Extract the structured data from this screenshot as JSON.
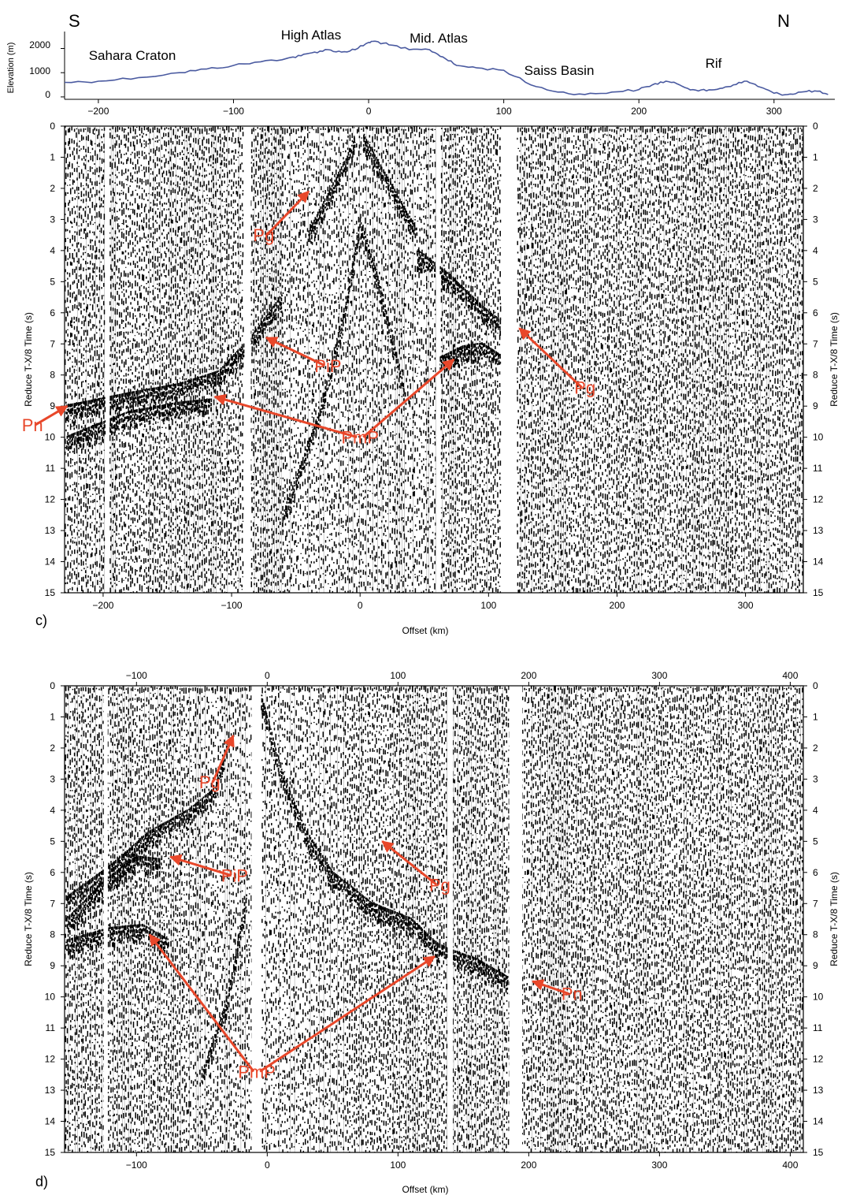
{
  "colors": {
    "elevation_line": "#4a5aa0",
    "annotation": "#e8472a",
    "trace": "#000000",
    "frame": "#000000"
  },
  "profile": {
    "end_left": "S",
    "end_right": "N",
    "ylabel": "Elevation (m)",
    "y_ticks": [
      "0",
      "1000",
      "2000"
    ],
    "regions": [
      {
        "label": "Sahara Craton",
        "x": -170
      },
      {
        "label": "High Atlas",
        "x": -33
      },
      {
        "label": "Mid. Atlas",
        "x": 65
      },
      {
        "label": "Saiss Basin",
        "x": 160
      },
      {
        "label": "Rif",
        "x": 280
      }
    ]
  },
  "chart_data": [
    {
      "type": "line",
      "panel_label": "",
      "xlabel": "",
      "ylabel": "Elevation (m)",
      "xlim": [
        -225,
        345
      ],
      "ylim": [
        -100,
        2700
      ],
      "x_ticks": [
        -200,
        -100,
        0,
        100,
        200,
        300
      ],
      "y_ticks": [
        0,
        1000,
        2000
      ],
      "series": [
        {
          "x": [
            -225,
            -200,
            -170,
            -140,
            -120,
            -100,
            -80,
            -60,
            -50,
            -40,
            -30,
            -20,
            -10,
            0,
            5,
            15,
            30,
            45,
            55,
            65,
            80,
            100,
            120,
            140,
            160,
            180,
            200,
            210,
            220,
            230,
            240,
            250,
            260,
            270,
            280,
            290,
            300,
            310,
            320,
            330,
            340
          ],
          "y": [
            600,
            650,
            800,
            1000,
            1150,
            1300,
            1450,
            1600,
            1700,
            1850,
            1950,
            1850,
            1950,
            2250,
            2300,
            2150,
            1950,
            1950,
            1650,
            1300,
            1200,
            1100,
            500,
            200,
            100,
            200,
            300,
            500,
            650,
            500,
            300,
            250,
            350,
            500,
            650,
            400,
            150,
            100,
            200,
            250,
            100
          ]
        }
      ]
    },
    {
      "type": "heatmap",
      "panel_label": "c)",
      "xlabel": "Offset (km)",
      "ylabel": "Reduce T-X/8 Time (s)",
      "xlim": [
        -230,
        345
      ],
      "ylim": [
        15,
        0
      ],
      "x_ticks": [
        -200,
        -100,
        0,
        100,
        200,
        300
      ],
      "y_ticks": [
        0,
        1,
        2,
        3,
        4,
        5,
        6,
        7,
        8,
        9,
        10,
        11,
        12,
        13,
        14,
        15
      ],
      "gaps": [
        [
          -198,
          -195
        ],
        [
          -90,
          -85
        ],
        [
          59,
          62
        ],
        [
          110,
          122
        ]
      ],
      "phase_curves": [
        {
          "x": [
            -40,
            -25,
            -10,
            -3
          ],
          "y": [
            3.4,
            2.2,
            1.0,
            0.3
          ]
        },
        {
          "x": [
            3,
            15,
            30,
            45
          ],
          "y": [
            0.3,
            1.2,
            2.3,
            3.4
          ]
        },
        {
          "x": [
            -228,
            -180,
            -140,
            -110,
            -85,
            -60
          ],
          "y": [
            9.0,
            8.6,
            8.3,
            7.9,
            6.8,
            5.4
          ]
        },
        {
          "x": [
            -228,
            -180,
            -140,
            -115
          ],
          "y": [
            10.0,
            9.2,
            8.9,
            8.8
          ]
        },
        {
          "x": [
            45,
            70,
            95,
            110
          ],
          "y": [
            4.0,
            4.8,
            5.8,
            6.3
          ]
        },
        {
          "x": [
            60,
            80,
            95,
            110
          ],
          "y": [
            7.5,
            7.1,
            7.0,
            7.4
          ]
        },
        {
          "x": [
            -60,
            -30,
            -10,
            0,
            15,
            35
          ],
          "y": [
            12.5,
            9.0,
            5.5,
            3.0,
            5.0,
            8.5
          ]
        }
      ],
      "annotations": [
        {
          "label": "Pg",
          "text_x": -75,
          "text_t": 3.7,
          "arrow_to": [
            [
              -40,
              2.1
            ]
          ]
        },
        {
          "label": "PiP",
          "text_x": -25,
          "text_t": 7.9,
          "arrow_to": [
            [
              -73,
              6.8
            ]
          ]
        },
        {
          "label": "PmP",
          "text_x": 0,
          "text_t": 10.2,
          "arrow_to": [
            [
              -113,
              8.7
            ],
            [
              73,
              7.5
            ]
          ]
        },
        {
          "label": "Pg",
          "text_x": 175,
          "text_t": 8.6,
          "arrow_to": [
            [
              124,
              6.5
            ]
          ]
        },
        {
          "label": "Pn",
          "text_x": -255,
          "text_t": 9.8,
          "arrow_to": [
            [
              -228,
              9.0
            ]
          ]
        }
      ]
    },
    {
      "type": "heatmap",
      "panel_label": "d)",
      "xlabel": "Offset (km)",
      "ylabel": "Reduce T-X/8 Time (s)",
      "xlim": [
        -155,
        410
      ],
      "ylim": [
        15,
        0
      ],
      "x_ticks": [
        -100,
        0,
        100,
        200,
        300,
        400
      ],
      "y_ticks": [
        0,
        1,
        2,
        3,
        4,
        5,
        6,
        7,
        8,
        9,
        10,
        11,
        12,
        13,
        14,
        15
      ],
      "gaps": [
        [
          -125,
          -122
        ],
        [
          -12,
          -5
        ],
        [
          138,
          142
        ],
        [
          185,
          195
        ]
      ],
      "phase_curves": [
        {
          "x": [
            -153,
            -120,
            -90,
            -60,
            -40,
            -30
          ],
          "y": [
            6.8,
            5.8,
            4.7,
            4.0,
            3.3,
            1.8
          ]
        },
        {
          "x": [
            -153,
            -125,
            -100,
            -80
          ],
          "y": [
            7.5,
            6.3,
            5.5,
            5.6
          ]
        },
        {
          "x": [
            -5,
            0,
            10,
            30,
            50,
            80,
            110,
            130,
            140
          ],
          "y": [
            0.2,
            1.0,
            2.6,
            4.7,
            6.0,
            7.0,
            7.5,
            8.3,
            8.5
          ]
        },
        {
          "x": [
            -153,
            -120,
            -95,
            -75
          ],
          "y": [
            8.2,
            7.8,
            7.7,
            8.2
          ]
        },
        {
          "x": [
            140,
            160,
            185
          ],
          "y": [
            8.5,
            8.8,
            9.4
          ]
        },
        {
          "x": [
            -50,
            -30,
            -15
          ],
          "y": [
            12.5,
            10.0,
            6.5
          ]
        }
      ],
      "annotations": [
        {
          "label": "Pg",
          "text_x": -44,
          "text_t": 3.3,
          "arrow_to": [
            [
              -26,
              1.6
            ]
          ]
        },
        {
          "label": "PiP",
          "text_x": -25,
          "text_t": 6.3,
          "arrow_to": [
            [
              -74,
              5.5
            ]
          ]
        },
        {
          "label": "Pg",
          "text_x": 132,
          "text_t": 6.6,
          "arrow_to": [
            [
              88,
              5.0
            ]
          ]
        },
        {
          "label": "Pn",
          "text_x": 233,
          "text_t": 10.1,
          "arrow_to": [
            [
              203,
              9.5
            ]
          ]
        },
        {
          "label": "PmP",
          "text_x": -8,
          "text_t": 12.6,
          "arrow_to": [
            [
              -90,
              8.0
            ],
            [
              128,
              8.7
            ]
          ]
        }
      ]
    }
  ]
}
